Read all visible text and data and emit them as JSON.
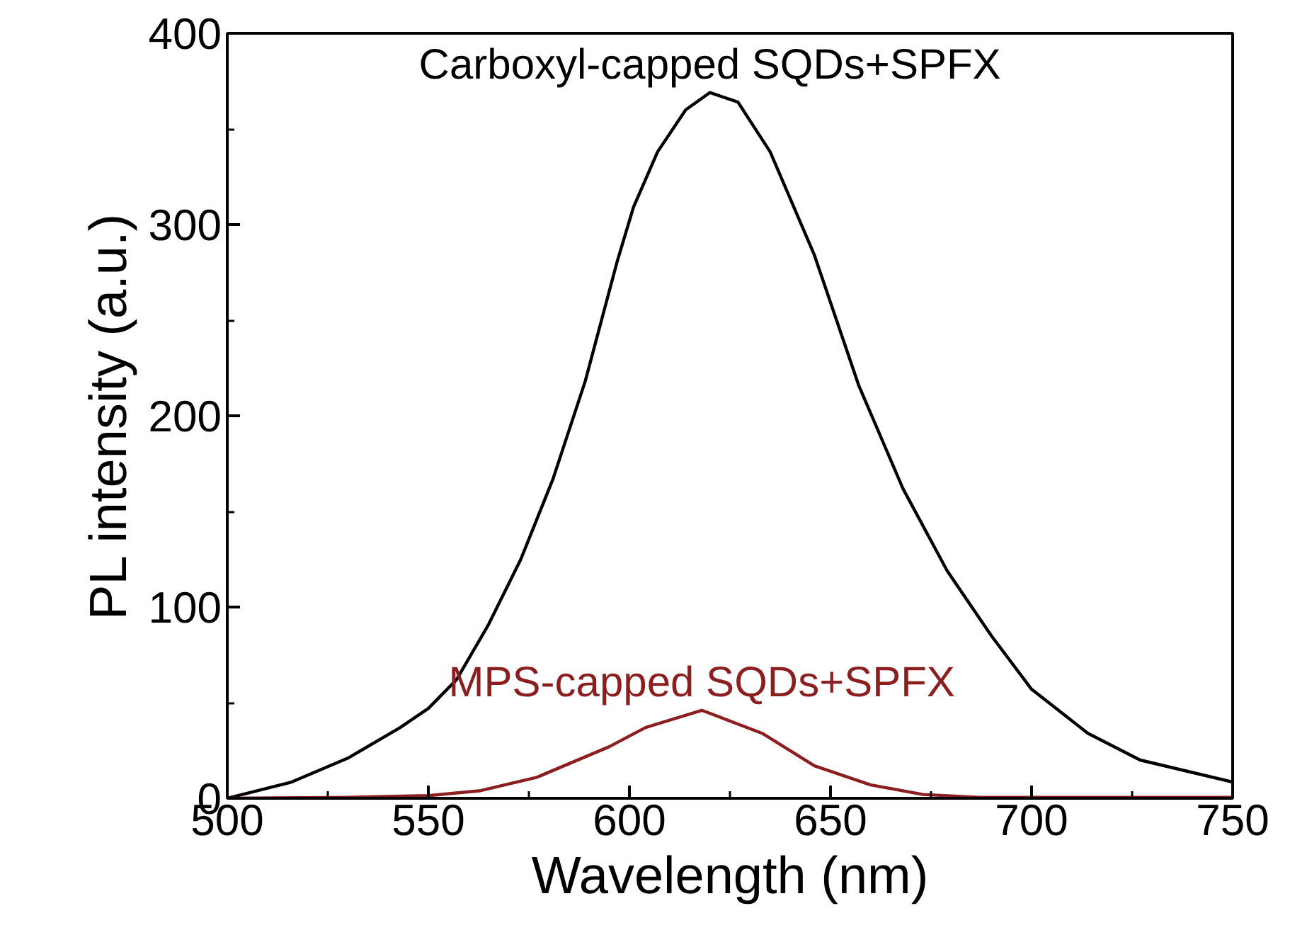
{
  "chart_data": {
    "type": "line",
    "xlabel": "Wavelength (nm)",
    "ylabel": "PL intensity (a.u.)",
    "xlim": [
      500,
      750
    ],
    "ylim": [
      0,
      400
    ],
    "xticks": [
      500,
      {
        "value": 525,
        "label": null
      },
      550,
      {
        "value": 575,
        "label": null
      },
      600,
      {
        "value": 625,
        "label": null
      },
      650,
      {
        "value": 675,
        "label": null
      },
      700,
      {
        "value": 725,
        "label": null
      },
      750
    ],
    "yticks": [
      0,
      {
        "value": 50,
        "label": null
      },
      100,
      {
        "value": 150,
        "label": null
      },
      200,
      {
        "value": 250,
        "label": null
      },
      300,
      {
        "value": 350,
        "label": null
      },
      400
    ],
    "grid": false,
    "marker": "none",
    "line_style": "solid",
    "series": [
      {
        "name": "Carboxyl-capped SQDs+SPFX",
        "color": "#000000",
        "x": [
          500,
          516,
          530,
          543,
          550,
          557,
          565,
          573,
          581,
          589,
          597,
          601,
          607,
          614,
          620,
          627,
          635,
          646,
          657,
          668,
          679,
          690,
          700,
          714,
          727,
          750
        ],
        "values": [
          0,
          8.5,
          21,
          37,
          47,
          62,
          91,
          125,
          167,
          218,
          281,
          309,
          338,
          360,
          369,
          364,
          338,
          284,
          216,
          162,
          119,
          85,
          57,
          34,
          20,
          8.5
        ]
      },
      {
        "name": "MPS-capped SQDs+SPFX",
        "color": "#8b1e1e",
        "x": [
          500,
          530,
          550,
          563,
          577,
          595,
          604,
          618,
          633,
          646,
          660,
          673,
          687,
          700,
          750
        ],
        "values": [
          0,
          0.5,
          1.4,
          4,
          11,
          27,
          37,
          46,
          34,
          17,
          7,
          2,
          0.5,
          0.5,
          0.5
        ]
      }
    ]
  }
}
